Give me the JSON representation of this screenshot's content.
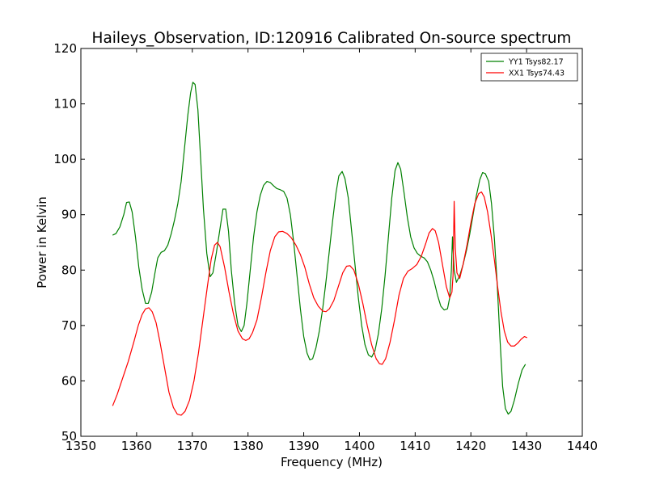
{
  "chart_data": {
    "type": "line",
    "title": "Haileys_Observation, ID:120916 Calibrated On-source spectrum",
    "xlabel": "Frequency (MHz)",
    "ylabel": "Power in Kelvin",
    "xlim": [
      1350,
      1440
    ],
    "ylim": [
      50,
      120
    ],
    "xticks": [
      1350,
      1360,
      1370,
      1380,
      1390,
      1400,
      1410,
      1420,
      1430,
      1440
    ],
    "yticks": [
      50,
      60,
      70,
      80,
      90,
      100,
      110,
      120
    ],
    "xtick_labels": [
      "1350",
      "1360",
      "1370",
      "1380",
      "1390",
      "1400",
      "1410",
      "1420",
      "1430",
      "1440"
    ],
    "ytick_labels": [
      "50",
      "60",
      "70",
      "80",
      "90",
      "100",
      "110",
      "120"
    ],
    "grid": false,
    "legend_position": "top-right",
    "series": [
      {
        "name": "YY1 Tsys82.17",
        "color": "#008000",
        "points": [
          [
            1355.7,
            86.3
          ],
          [
            1356.3,
            86.6
          ],
          [
            1357.0,
            87.8
          ],
          [
            1357.7,
            90.0
          ],
          [
            1358.2,
            92.2
          ],
          [
            1358.7,
            92.3
          ],
          [
            1359.2,
            90.5
          ],
          [
            1359.8,
            86.0
          ],
          [
            1360.4,
            80.5
          ],
          [
            1361.0,
            76.5
          ],
          [
            1361.6,
            74.0
          ],
          [
            1362.1,
            74.0
          ],
          [
            1362.7,
            76.0
          ],
          [
            1363.3,
            79.5
          ],
          [
            1363.8,
            82.2
          ],
          [
            1364.4,
            83.2
          ],
          [
            1365.0,
            83.5
          ],
          [
            1365.6,
            84.5
          ],
          [
            1366.2,
            86.5
          ],
          [
            1366.8,
            89.0
          ],
          [
            1367.4,
            92.0
          ],
          [
            1368.0,
            96.0
          ],
          [
            1368.6,
            102.0
          ],
          [
            1369.2,
            108.0
          ],
          [
            1369.7,
            112.0
          ],
          [
            1370.1,
            113.9
          ],
          [
            1370.5,
            113.5
          ],
          [
            1371.0,
            109.0
          ],
          [
            1371.5,
            100.0
          ],
          [
            1372.0,
            91.0
          ],
          [
            1372.6,
            83.0
          ],
          [
            1373.2,
            78.8
          ],
          [
            1373.7,
            79.5
          ],
          [
            1374.3,
            83.0
          ],
          [
            1374.9,
            87.0
          ],
          [
            1375.5,
            91.0
          ],
          [
            1376.0,
            91.0
          ],
          [
            1376.5,
            87.0
          ],
          [
            1377.0,
            80.0
          ],
          [
            1377.6,
            74.0
          ],
          [
            1378.2,
            70.0
          ],
          [
            1378.8,
            68.9
          ],
          [
            1379.3,
            70.0
          ],
          [
            1379.8,
            74.0
          ],
          [
            1380.4,
            80.0
          ],
          [
            1381.0,
            86.0
          ],
          [
            1381.6,
            90.5
          ],
          [
            1382.2,
            93.5
          ],
          [
            1382.8,
            95.3
          ],
          [
            1383.4,
            96.0
          ],
          [
            1384.0,
            95.8
          ],
          [
            1384.6,
            95.2
          ],
          [
            1385.2,
            94.7
          ],
          [
            1385.8,
            94.5
          ],
          [
            1386.4,
            94.2
          ],
          [
            1387.0,
            93.0
          ],
          [
            1387.6,
            90.0
          ],
          [
            1388.2,
            85.0
          ],
          [
            1388.8,
            79.0
          ],
          [
            1389.4,
            73.0
          ],
          [
            1390.0,
            68.0
          ],
          [
            1390.6,
            65.0
          ],
          [
            1391.1,
            63.8
          ],
          [
            1391.6,
            64.0
          ],
          [
            1392.2,
            66.0
          ],
          [
            1392.8,
            69.0
          ],
          [
            1393.4,
            73.0
          ],
          [
            1394.0,
            78.0
          ],
          [
            1394.6,
            83.5
          ],
          [
            1395.2,
            89.0
          ],
          [
            1395.8,
            94.0
          ],
          [
            1396.3,
            97.0
          ],
          [
            1396.9,
            97.8
          ],
          [
            1397.4,
            96.5
          ],
          [
            1398.0,
            93.0
          ],
          [
            1398.6,
            87.0
          ],
          [
            1399.2,
            81.0
          ],
          [
            1399.8,
            75.0
          ],
          [
            1400.4,
            70.0
          ],
          [
            1401.0,
            66.5
          ],
          [
            1401.6,
            64.7
          ],
          [
            1402.2,
            64.3
          ],
          [
            1402.8,
            65.5
          ],
          [
            1403.4,
            68.5
          ],
          [
            1404.0,
            73.0
          ],
          [
            1404.6,
            79.0
          ],
          [
            1405.2,
            86.0
          ],
          [
            1405.8,
            93.0
          ],
          [
            1406.4,
            98.0
          ],
          [
            1406.9,
            99.4
          ],
          [
            1407.4,
            98.2
          ],
          [
            1408.0,
            94.0
          ],
          [
            1408.6,
            89.5
          ],
          [
            1409.2,
            86.0
          ],
          [
            1409.8,
            84.0
          ],
          [
            1410.4,
            83.0
          ],
          [
            1411.0,
            82.5
          ],
          [
            1411.6,
            82.2
          ],
          [
            1412.2,
            81.5
          ],
          [
            1412.8,
            80.0
          ],
          [
            1413.4,
            78.0
          ],
          [
            1414.0,
            75.5
          ],
          [
            1414.6,
            73.5
          ],
          [
            1415.2,
            72.8
          ],
          [
            1415.8,
            73.0
          ],
          [
            1416.2,
            75.0
          ],
          [
            1416.5,
            80.0
          ],
          [
            1416.7,
            86.0
          ],
          [
            1417.0,
            80.0
          ],
          [
            1417.4,
            77.8
          ],
          [
            1418.0,
            79.0
          ],
          [
            1418.6,
            81.0
          ],
          [
            1419.2,
            83.5
          ],
          [
            1419.8,
            86.5
          ],
          [
            1420.4,
            90.0
          ],
          [
            1421.0,
            93.5
          ],
          [
            1421.6,
            96.3
          ],
          [
            1422.1,
            97.6
          ],
          [
            1422.6,
            97.4
          ],
          [
            1423.2,
            96.0
          ],
          [
            1423.7,
            92.0
          ],
          [
            1424.2,
            86.0
          ],
          [
            1424.7,
            78.0
          ],
          [
            1425.2,
            68.0
          ],
          [
            1425.7,
            59.0
          ],
          [
            1426.2,
            55.0
          ],
          [
            1426.7,
            54.0
          ],
          [
            1427.2,
            54.5
          ],
          [
            1427.8,
            56.5
          ],
          [
            1428.5,
            59.5
          ],
          [
            1429.2,
            62.0
          ],
          [
            1429.8,
            63.0
          ]
        ]
      },
      {
        "name": "XX1 Tsys74.43",
        "color": "#ff0000",
        "points": [
          [
            1355.7,
            55.5
          ],
          [
            1356.5,
            57.5
          ],
          [
            1357.5,
            60.5
          ],
          [
            1358.5,
            63.5
          ],
          [
            1359.5,
            67.0
          ],
          [
            1360.3,
            70.0
          ],
          [
            1361.0,
            72.0
          ],
          [
            1361.6,
            73.0
          ],
          [
            1362.2,
            73.2
          ],
          [
            1362.8,
            72.5
          ],
          [
            1363.5,
            70.5
          ],
          [
            1364.2,
            67.0
          ],
          [
            1365.0,
            62.5
          ],
          [
            1365.8,
            58.0
          ],
          [
            1366.6,
            55.2
          ],
          [
            1367.3,
            54.0
          ],
          [
            1368.0,
            53.8
          ],
          [
            1368.7,
            54.5
          ],
          [
            1369.5,
            56.5
          ],
          [
            1370.3,
            60.0
          ],
          [
            1371.1,
            65.0
          ],
          [
            1371.9,
            71.0
          ],
          [
            1372.7,
            77.0
          ],
          [
            1373.4,
            82.0
          ],
          [
            1374.0,
            84.5
          ],
          [
            1374.5,
            85.0
          ],
          [
            1375.0,
            84.2
          ],
          [
            1375.8,
            80.5
          ],
          [
            1376.6,
            76.0
          ],
          [
            1377.4,
            72.0
          ],
          [
            1378.2,
            69.0
          ],
          [
            1379.0,
            67.6
          ],
          [
            1379.6,
            67.3
          ],
          [
            1380.2,
            67.6
          ],
          [
            1380.8,
            68.7
          ],
          [
            1381.6,
            71.0
          ],
          [
            1382.4,
            75.0
          ],
          [
            1383.2,
            79.5
          ],
          [
            1384.0,
            83.5
          ],
          [
            1384.8,
            86.0
          ],
          [
            1385.5,
            86.9
          ],
          [
            1386.2,
            87.0
          ],
          [
            1387.0,
            86.6
          ],
          [
            1387.8,
            85.8
          ],
          [
            1388.6,
            84.5
          ],
          [
            1389.4,
            82.8
          ],
          [
            1390.2,
            80.5
          ],
          [
            1391.0,
            77.5
          ],
          [
            1391.8,
            75.0
          ],
          [
            1392.6,
            73.5
          ],
          [
            1393.4,
            72.6
          ],
          [
            1394.0,
            72.5
          ],
          [
            1394.6,
            73.0
          ],
          [
            1395.4,
            74.5
          ],
          [
            1396.2,
            77.0
          ],
          [
            1397.0,
            79.5
          ],
          [
            1397.7,
            80.7
          ],
          [
            1398.3,
            80.8
          ],
          [
            1399.0,
            80.0
          ],
          [
            1399.8,
            77.5
          ],
          [
            1400.6,
            74.0
          ],
          [
            1401.4,
            70.0
          ],
          [
            1402.2,
            66.5
          ],
          [
            1403.0,
            64.0
          ],
          [
            1403.6,
            63.1
          ],
          [
            1404.1,
            63.0
          ],
          [
            1404.7,
            64.0
          ],
          [
            1405.5,
            67.0
          ],
          [
            1406.3,
            71.0
          ],
          [
            1407.1,
            75.5
          ],
          [
            1407.9,
            78.5
          ],
          [
            1408.7,
            79.8
          ],
          [
            1409.5,
            80.3
          ],
          [
            1410.3,
            81.0
          ],
          [
            1411.1,
            82.5
          ],
          [
            1411.9,
            84.8
          ],
          [
            1412.5,
            86.7
          ],
          [
            1413.1,
            87.5
          ],
          [
            1413.6,
            87.1
          ],
          [
            1414.2,
            85.0
          ],
          [
            1414.9,
            81.0
          ],
          [
            1415.6,
            77.0
          ],
          [
            1416.2,
            75.0
          ],
          [
            1416.6,
            76.0
          ],
          [
            1416.8,
            79.0
          ],
          [
            1417.0,
            92.4
          ],
          [
            1417.2,
            84.0
          ],
          [
            1417.5,
            79.5
          ],
          [
            1418.0,
            78.5
          ],
          [
            1418.6,
            81.0
          ],
          [
            1419.3,
            84.5
          ],
          [
            1420.0,
            88.5
          ],
          [
            1420.7,
            92.0
          ],
          [
            1421.4,
            93.8
          ],
          [
            1421.9,
            94.1
          ],
          [
            1422.4,
            93.2
          ],
          [
            1423.0,
            90.5
          ],
          [
            1423.6,
            86.5
          ],
          [
            1424.2,
            82.0
          ],
          [
            1424.8,
            77.0
          ],
          [
            1425.4,
            72.5
          ],
          [
            1426.0,
            69.0
          ],
          [
            1426.6,
            67.0
          ],
          [
            1427.2,
            66.3
          ],
          [
            1427.8,
            66.3
          ],
          [
            1428.4,
            66.8
          ],
          [
            1429.0,
            67.5
          ],
          [
            1429.6,
            68.0
          ],
          [
            1430.1,
            67.8
          ]
        ]
      }
    ]
  }
}
